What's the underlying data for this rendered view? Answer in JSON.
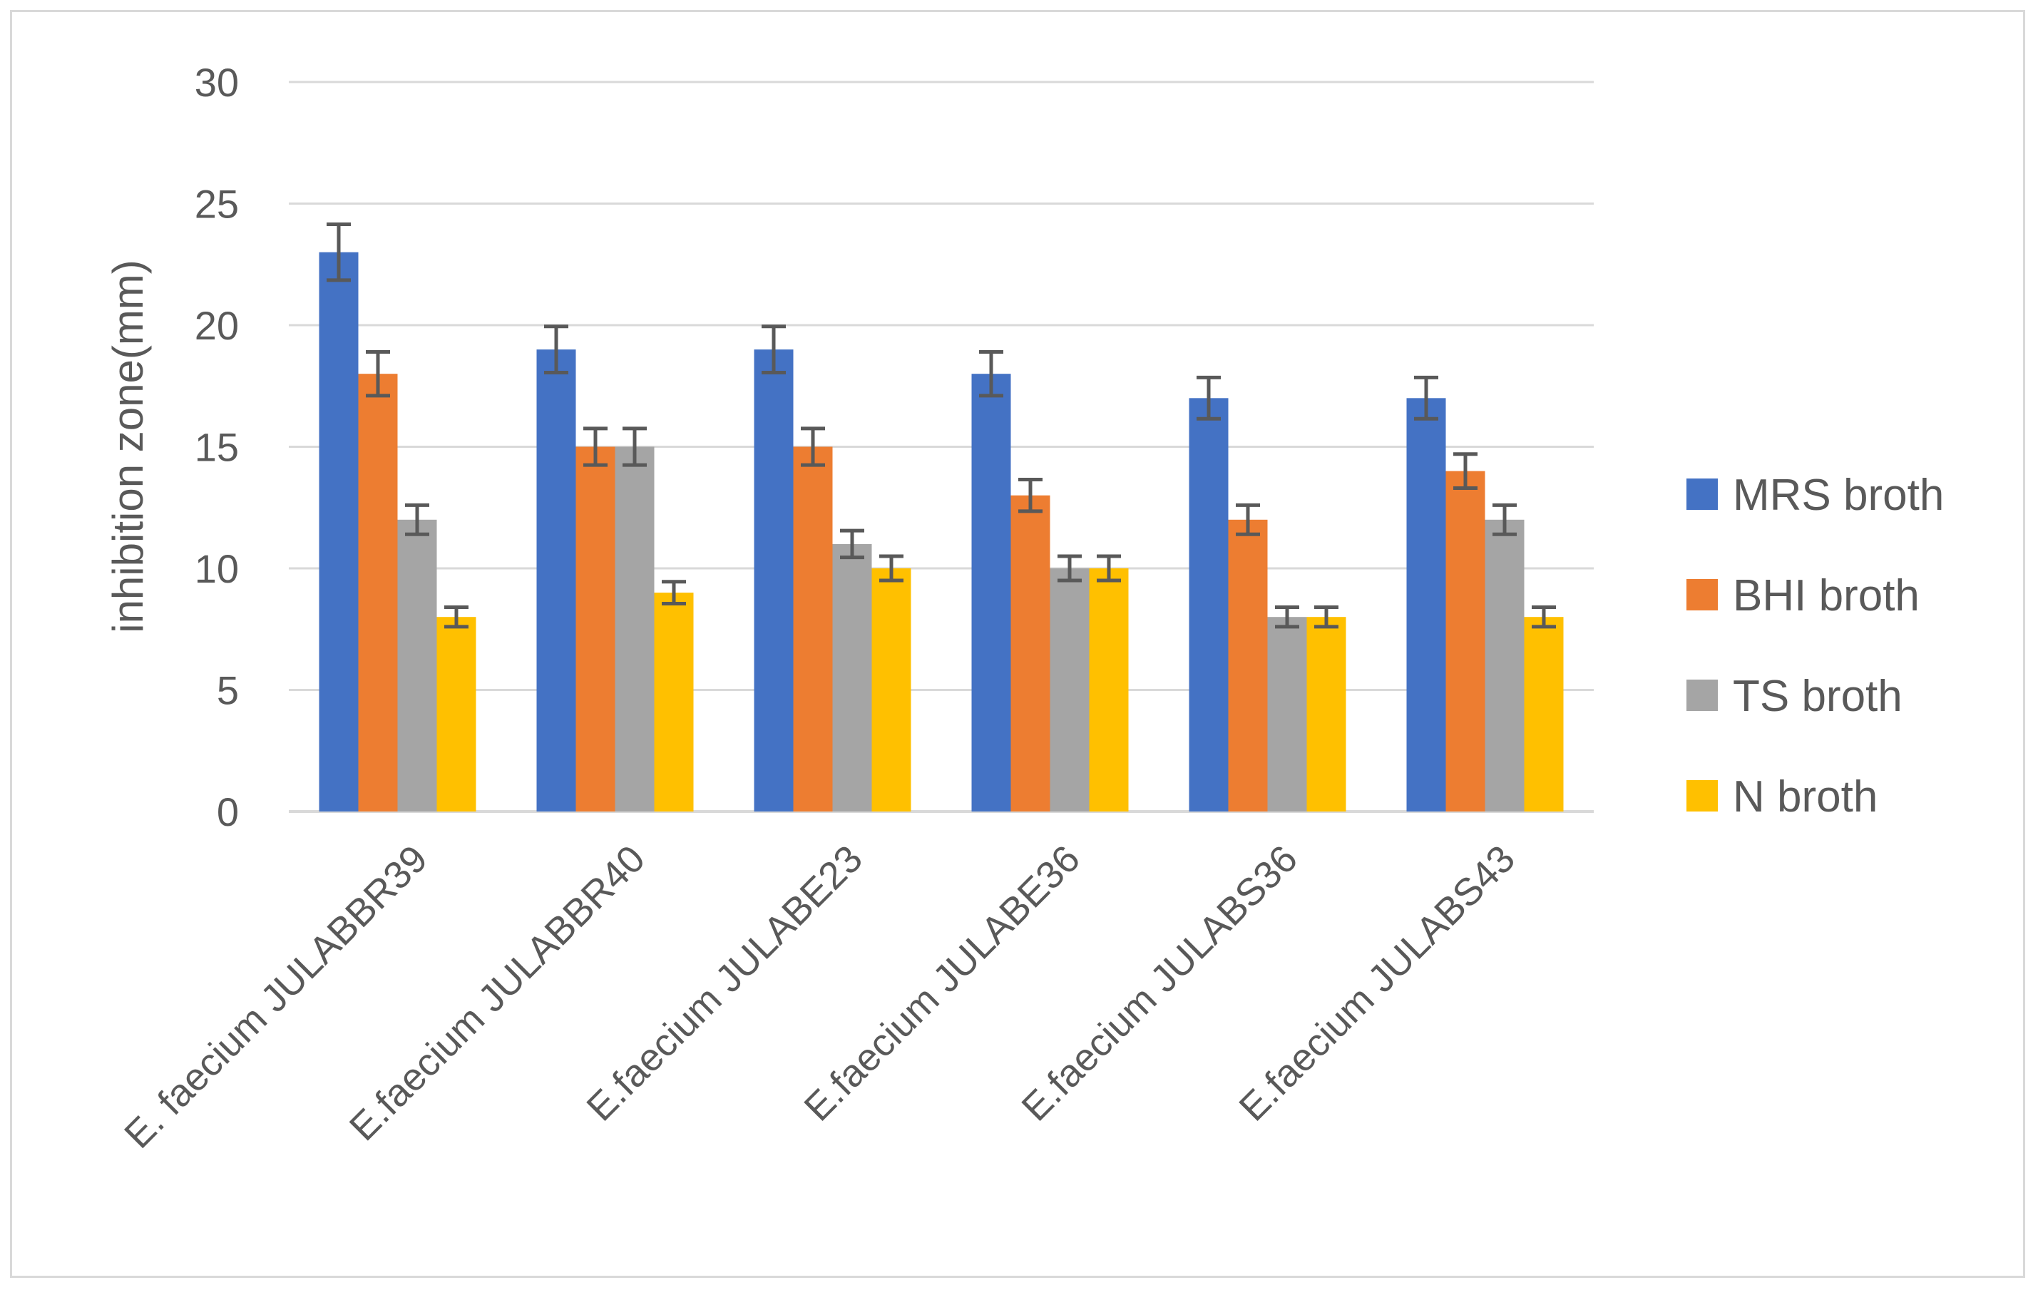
{
  "chart_data": {
    "type": "bar",
    "ylabel": "inhibition zone(mm)",
    "ylim": [
      0,
      30
    ],
    "yticks": [
      0,
      5,
      10,
      15,
      20,
      25,
      30
    ],
    "grid": true,
    "legend_position": "right",
    "categories": [
      "E. faecium JULABBR39",
      "E.faecium JULABBR40",
      "E.faecium JULABE23",
      "E.faecium JULABE36",
      "E.faecium JULABS36",
      "E.faecium JULABS43"
    ],
    "series": [
      {
        "name": "MRS broth",
        "color": "#4472c4",
        "values": [
          23,
          19,
          19,
          18,
          17,
          17
        ],
        "errors": [
          1.15,
          0.95,
          0.95,
          0.9,
          0.85,
          0.85
        ]
      },
      {
        "name": "BHI broth",
        "color": "#ed7d31",
        "values": [
          18,
          15,
          15,
          13,
          12,
          14
        ],
        "errors": [
          0.9,
          0.75,
          0.75,
          0.65,
          0.6,
          0.7
        ]
      },
      {
        "name": "TS broth",
        "color": "#a5a5a5",
        "values": [
          12,
          15,
          11,
          10,
          8,
          12
        ],
        "errors": [
          0.6,
          0.75,
          0.55,
          0.5,
          0.4,
          0.6
        ]
      },
      {
        "name": "N broth",
        "color": "#ffc000",
        "values": [
          8,
          9,
          10,
          10,
          8,
          8
        ],
        "errors": [
          0.4,
          0.45,
          0.5,
          0.5,
          0.4,
          0.4
        ]
      }
    ]
  }
}
